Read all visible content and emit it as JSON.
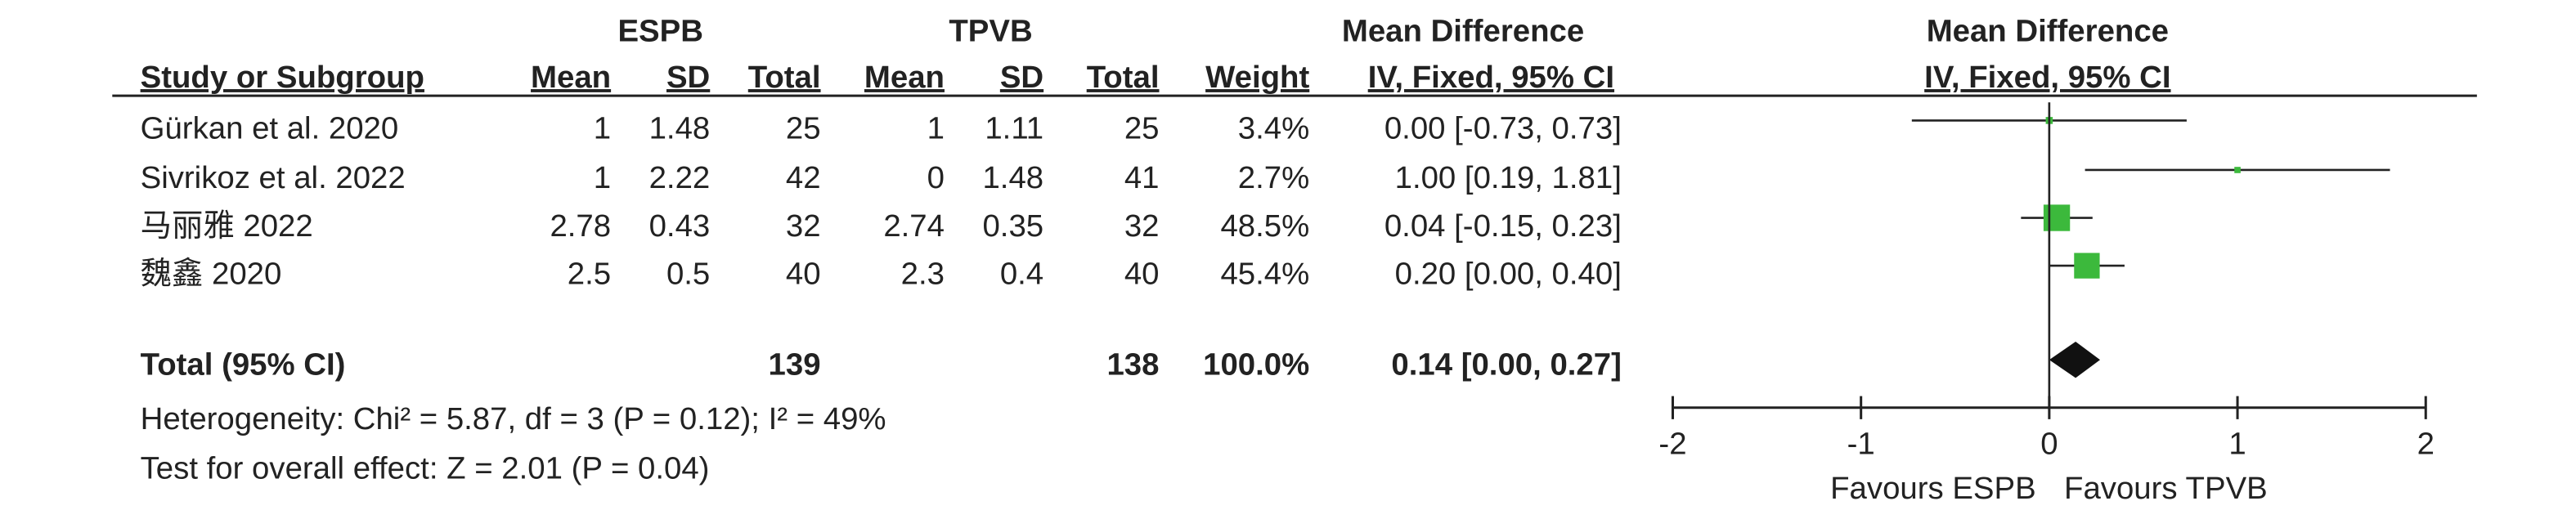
{
  "chart_data": {
    "type": "forest",
    "group_headers": [
      "ESPB",
      "TPVB",
      "Mean Difference",
      "Mean Difference"
    ],
    "columns": [
      "Study or Subgroup",
      "Mean",
      "SD",
      "Total",
      "Mean",
      "SD",
      "Total",
      "Weight",
      "IV, Fixed, 95% CI",
      "IV, Fixed, 95% CI"
    ],
    "studies": [
      {
        "name": "Gürkan et al. 2020",
        "cells": [
          1,
          1.48,
          25,
          1,
          1.11,
          25,
          "3.4%",
          "0.00 [-0.73, 0.73]"
        ],
        "weight": 3.4,
        "md": 0,
        "ci": [
          -0.73,
          0.73
        ]
      },
      {
        "name": "Sivrikoz et al. 2022",
        "cells": [
          1,
          2.22,
          42,
          0,
          1.48,
          41,
          "2.7%",
          "1.00 [0.19, 1.81]"
        ],
        "weight": 2.7,
        "md": 1,
        "ci": [
          0.19,
          1.81
        ]
      },
      {
        "name": "马丽雅 2022",
        "cells": [
          2.78,
          0.43,
          32,
          2.74,
          0.35,
          32,
          "48.5%",
          "0.04 [-0.15, 0.23]"
        ],
        "weight": 48.5,
        "md": 0.04,
        "ci": [
          -0.15,
          0.23
        ]
      },
      {
        "name": "魏鑫 2020",
        "cells": [
          2.5,
          0.5,
          40,
          2.3,
          0.4,
          40,
          "45.4%",
          "0.20 [0.00, 0.40]"
        ],
        "weight": 45.4,
        "md": 0.2,
        "ci": [
          0,
          0.4
        ]
      }
    ],
    "total": {
      "name": "Total (95% CI)",
      "cells": [
        139,
        138,
        "100.0%",
        "0.14 [0.00, 0.27]"
      ],
      "md": 0.14,
      "ci": [
        0,
        0.27
      ]
    },
    "heterogeneity": "Heterogeneity: Chi² = 5.87, df = 3 (P = 0.12); I² = 49%",
    "overall_effect": "Test for overall effect: Z = 2.01 (P = 0.04)",
    "xlim": [
      -2,
      2
    ],
    "xticks": [
      -2,
      -1,
      0,
      1,
      2
    ],
    "favours_left": "Favours ESPB",
    "favours_right": "Favours TPVB",
    "color": "#3cb93c"
  }
}
